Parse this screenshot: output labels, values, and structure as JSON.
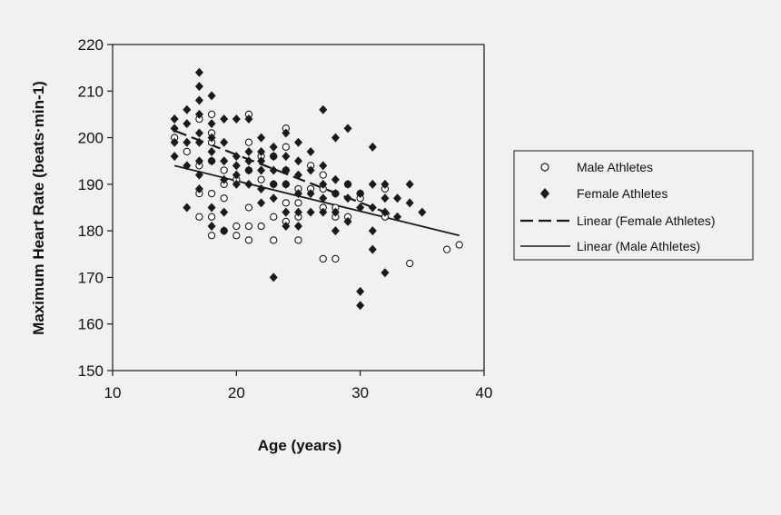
{
  "chart_data": {
    "type": "scatter",
    "xlabel": "Age (years)",
    "ylabel": "Maximum Heart Rate (beats·min-1)",
    "xlim": [
      10,
      40
    ],
    "ylim": [
      150,
      220
    ],
    "xticks": [
      10,
      20,
      30,
      40
    ],
    "yticks": [
      150,
      160,
      170,
      180,
      190,
      200,
      210,
      220
    ],
    "grid": false,
    "legend_position": "right",
    "series": [
      {
        "name": "Male Athletes",
        "marker": "open-circle",
        "color": "#1a1a1a",
        "points": [
          [
            15,
            200
          ],
          [
            16,
            197
          ],
          [
            17,
            194
          ],
          [
            17,
            188
          ],
          [
            17,
            183
          ],
          [
            17,
            204
          ],
          [
            18,
            205
          ],
          [
            18,
            201
          ],
          [
            18,
            199
          ],
          [
            18,
            195
          ],
          [
            18,
            188
          ],
          [
            18,
            183
          ],
          [
            18,
            179
          ],
          [
            19,
            193
          ],
          [
            19,
            190
          ],
          [
            19,
            187
          ],
          [
            19,
            180
          ],
          [
            20,
            191
          ],
          [
            20,
            181
          ],
          [
            20,
            179
          ],
          [
            21,
            205
          ],
          [
            21,
            199
          ],
          [
            21,
            193
          ],
          [
            21,
            185
          ],
          [
            21,
            181
          ],
          [
            21,
            178
          ],
          [
            22,
            196
          ],
          [
            22,
            191
          ],
          [
            22,
            181
          ],
          [
            23,
            196
          ],
          [
            23,
            190
          ],
          [
            23,
            183
          ],
          [
            23,
            178
          ],
          [
            24,
            202
          ],
          [
            24,
            198
          ],
          [
            24,
            193
          ],
          [
            24,
            190
          ],
          [
            24,
            186
          ],
          [
            24,
            182
          ],
          [
            25,
            189
          ],
          [
            25,
            186
          ],
          [
            25,
            183
          ],
          [
            25,
            178
          ],
          [
            26,
            194
          ],
          [
            26,
            189
          ],
          [
            27,
            192
          ],
          [
            27,
            189
          ],
          [
            27,
            185
          ],
          [
            27,
            174
          ],
          [
            28,
            188
          ],
          [
            28,
            185
          ],
          [
            28,
            183
          ],
          [
            28,
            174
          ],
          [
            29,
            190
          ],
          [
            29,
            183
          ],
          [
            30,
            188
          ],
          [
            30,
            187
          ],
          [
            32,
            189
          ],
          [
            32,
            183
          ],
          [
            34,
            173
          ],
          [
            37,
            176
          ],
          [
            38,
            177
          ]
        ]
      },
      {
        "name": "Female Athletes",
        "marker": "filled-diamond",
        "color": "#1a1a1a",
        "points": [
          [
            15,
            204
          ],
          [
            15,
            202
          ],
          [
            15,
            199
          ],
          [
            15,
            196
          ],
          [
            16,
            206
          ],
          [
            16,
            203
          ],
          [
            16,
            199
          ],
          [
            16,
            194
          ],
          [
            16,
            185
          ],
          [
            17,
            214
          ],
          [
            17,
            211
          ],
          [
            17,
            208
          ],
          [
            17,
            205
          ],
          [
            17,
            201
          ],
          [
            17,
            199
          ],
          [
            17,
            195
          ],
          [
            17,
            192
          ],
          [
            17,
            189
          ],
          [
            18,
            209
          ],
          [
            18,
            203
          ],
          [
            18,
            200
          ],
          [
            18,
            197
          ],
          [
            18,
            195
          ],
          [
            18,
            185
          ],
          [
            18,
            181
          ],
          [
            19,
            204
          ],
          [
            19,
            199
          ],
          [
            19,
            195
          ],
          [
            19,
            191
          ],
          [
            19,
            184
          ],
          [
            19,
            180
          ],
          [
            20,
            204
          ],
          [
            20,
            196
          ],
          [
            20,
            194
          ],
          [
            20,
            192
          ],
          [
            20,
            190
          ],
          [
            21,
            204
          ],
          [
            21,
            197
          ],
          [
            21,
            195
          ],
          [
            21,
            193
          ],
          [
            21,
            190
          ],
          [
            22,
            200
          ],
          [
            22,
            197
          ],
          [
            22,
            195
          ],
          [
            22,
            193
          ],
          [
            22,
            189
          ],
          [
            22,
            186
          ],
          [
            23,
            198
          ],
          [
            23,
            196
          ],
          [
            23,
            193
          ],
          [
            23,
            190
          ],
          [
            23,
            187
          ],
          [
            23,
            170
          ],
          [
            24,
            201
          ],
          [
            24,
            196
          ],
          [
            24,
            193
          ],
          [
            24,
            190
          ],
          [
            24,
            184
          ],
          [
            24,
            181
          ],
          [
            25,
            199
          ],
          [
            25,
            195
          ],
          [
            25,
            192
          ],
          [
            25,
            188
          ],
          [
            25,
            184
          ],
          [
            25,
            181
          ],
          [
            26,
            197
          ],
          [
            26,
            193
          ],
          [
            26,
            188
          ],
          [
            26,
            184
          ],
          [
            27,
            206
          ],
          [
            27,
            194
          ],
          [
            27,
            190
          ],
          [
            27,
            187
          ],
          [
            27,
            184
          ],
          [
            28,
            200
          ],
          [
            28,
            191
          ],
          [
            28,
            188
          ],
          [
            28,
            184
          ],
          [
            28,
            180
          ],
          [
            29,
            202
          ],
          [
            29,
            190
          ],
          [
            29,
            187
          ],
          [
            29,
            182
          ],
          [
            30,
            188
          ],
          [
            30,
            185
          ],
          [
            30,
            167
          ],
          [
            30,
            164
          ],
          [
            31,
            198
          ],
          [
            31,
            190
          ],
          [
            31,
            185
          ],
          [
            31,
            180
          ],
          [
            31,
            176
          ],
          [
            32,
            190
          ],
          [
            32,
            187
          ],
          [
            32,
            184
          ],
          [
            32,
            171
          ],
          [
            33,
            187
          ],
          [
            33,
            183
          ],
          [
            34,
            190
          ],
          [
            34,
            186
          ],
          [
            35,
            184
          ]
        ]
      }
    ],
    "trendlines": [
      {
        "name": "Linear (Female Athletes)",
        "style": "dashed",
        "color": "#1a1a1a",
        "x": [
          15,
          33
        ],
        "y": [
          201.5,
          183
        ]
      },
      {
        "name": "Linear (Male Athletes)",
        "style": "solid",
        "color": "#1a1a1a",
        "x": [
          15,
          38
        ],
        "y": [
          194,
          179
        ]
      }
    ],
    "legend": [
      {
        "label": "Male Athletes",
        "symbol": "open-circle"
      },
      {
        "label": "Female Athletes",
        "symbol": "filled-diamond"
      },
      {
        "label": "Linear (Female Athletes)",
        "symbol": "dashed-line"
      },
      {
        "label": "Linear (Male Athletes)",
        "symbol": "solid-line"
      }
    ]
  }
}
